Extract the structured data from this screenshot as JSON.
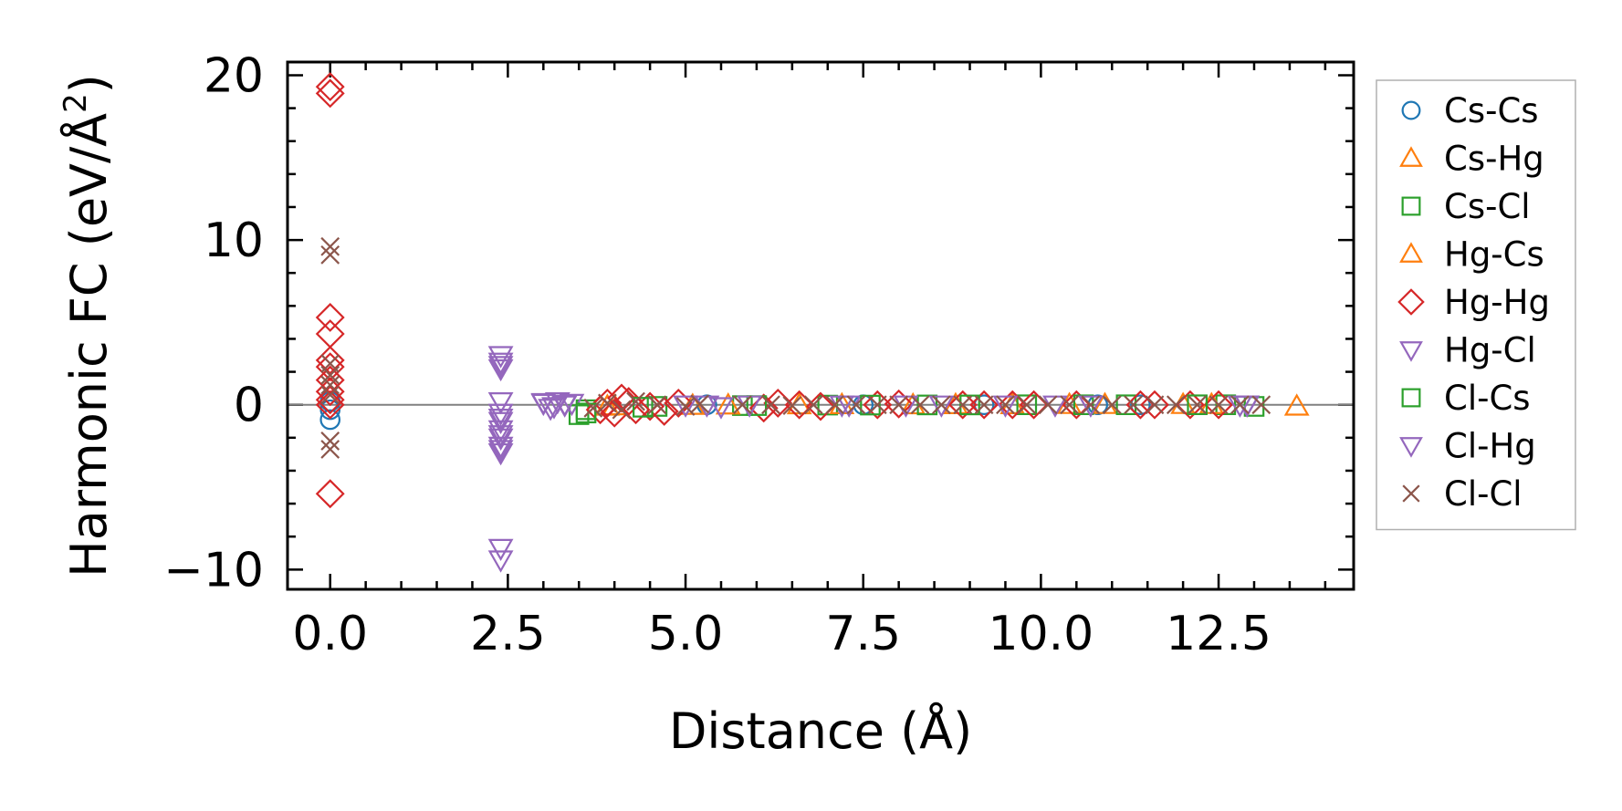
{
  "chart_data": {
    "type": "scatter",
    "xlabel": "Distance (Å)",
    "ylabel": "Harmonic FC (eV/Å²)",
    "ylabel_base": "Harmonic FC (eV/Å",
    "ylabel_sup": "2",
    "ylabel_close": ")",
    "xlim": [
      -0.6,
      14.4
    ],
    "ylim": [
      -11.2,
      20.8
    ],
    "xticks": [
      0.0,
      2.5,
      5.0,
      7.5,
      10.0,
      12.5
    ],
    "xtick_labels": [
      "0.0",
      "2.5",
      "5.0",
      "7.5",
      "10.0",
      "12.5"
    ],
    "yticks": [
      -10,
      0,
      10,
      20
    ],
    "ytick_labels": [
      "−10",
      "0",
      "10",
      "20"
    ],
    "grid": false,
    "zero_line": true,
    "legend_position": "outside-right",
    "series": [
      {
        "name": "Cs-Cs",
        "marker": "circle",
        "color": "#1f77b4",
        "points": [
          [
            0,
            -0.9
          ],
          [
            0,
            -0.3
          ],
          [
            0,
            0.2
          ],
          [
            5.3,
            0
          ],
          [
            7.5,
            0
          ],
          [
            9.2,
            0
          ],
          [
            10.8,
            0
          ],
          [
            11.4,
            0
          ]
        ]
      },
      {
        "name": "Cs-Hg",
        "marker": "triangle-up",
        "color": "#ff7f0e",
        "points": [
          [
            3.9,
            -0.1
          ],
          [
            5.1,
            -0.05
          ],
          [
            6.6,
            -0.02
          ],
          [
            8.2,
            -0.02
          ],
          [
            9.6,
            -0.01
          ],
          [
            10.9,
            0
          ],
          [
            12.0,
            0
          ],
          [
            13.6,
            -0.1
          ]
        ]
      },
      {
        "name": "Cs-Cl",
        "marker": "square",
        "color": "#2ca02c",
        "points": [
          [
            3.5,
            -0.6
          ],
          [
            3.6,
            -0.3
          ],
          [
            4.6,
            -0.1
          ],
          [
            5.8,
            -0.05
          ],
          [
            7.0,
            -0.02
          ],
          [
            8.4,
            -0.01
          ],
          [
            9.8,
            0
          ],
          [
            11.2,
            0
          ],
          [
            12.6,
            0
          ],
          [
            13.0,
            -0.1
          ]
        ]
      },
      {
        "name": "Hg-Cs",
        "marker": "triangle-up",
        "color": "#ff7f0e",
        "points": [
          [
            4.0,
            -0.08
          ],
          [
            5.6,
            -0.03
          ],
          [
            7.2,
            -0.01
          ],
          [
            8.8,
            -0.01
          ],
          [
            10.4,
            0
          ],
          [
            12.4,
            0
          ]
        ]
      },
      {
        "name": "Hg-Hg",
        "marker": "diamond",
        "color": "#d62728",
        "points": [
          [
            0,
            19.3
          ],
          [
            0,
            18.9
          ],
          [
            0,
            5.3
          ],
          [
            0,
            4.3
          ],
          [
            0,
            2.7
          ],
          [
            0,
            2.3
          ],
          [
            0,
            1.5
          ],
          [
            0,
            0.8
          ],
          [
            0,
            0.3
          ],
          [
            0,
            0
          ],
          [
            0,
            -5.4
          ],
          [
            3.8,
            -0.3
          ],
          [
            3.9,
            0.1
          ],
          [
            4.0,
            -0.5
          ],
          [
            4.1,
            0.4
          ],
          [
            4.2,
            0.2
          ],
          [
            4.3,
            -0.3
          ],
          [
            4.5,
            -0.1
          ],
          [
            4.7,
            -0.4
          ],
          [
            4.9,
            0.1
          ],
          [
            6.1,
            -0.2
          ],
          [
            6.3,
            0.1
          ],
          [
            6.6,
            0
          ],
          [
            6.9,
            -0.1
          ],
          [
            7.7,
            0
          ],
          [
            8.0,
            0.05
          ],
          [
            8.9,
            0
          ],
          [
            9.2,
            0
          ],
          [
            9.6,
            0
          ],
          [
            9.9,
            0
          ],
          [
            10.5,
            0
          ],
          [
            11.4,
            0
          ],
          [
            11.6,
            0
          ],
          [
            12.1,
            0
          ],
          [
            12.5,
            0
          ]
        ]
      },
      {
        "name": "Hg-Cl",
        "marker": "triangle-down",
        "color": "#9467bd",
        "points": [
          [
            2.4,
            3.0
          ],
          [
            2.4,
            2.6
          ],
          [
            2.4,
            2.2
          ],
          [
            2.4,
            0.2
          ],
          [
            2.4,
            -0.5
          ],
          [
            2.4,
            -1.0
          ],
          [
            2.4,
            -1.5
          ],
          [
            2.4,
            -2.0
          ],
          [
            2.4,
            -2.5
          ],
          [
            2.4,
            -2.9
          ],
          [
            2.4,
            -8.7
          ],
          [
            2.4,
            -9.4
          ],
          [
            3.0,
            0.1
          ],
          [
            3.1,
            -0.2
          ],
          [
            3.2,
            0.2
          ],
          [
            3.3,
            0
          ],
          [
            3.4,
            0.1
          ],
          [
            5.3,
            0
          ],
          [
            5.5,
            -0.1
          ],
          [
            7.3,
            0
          ],
          [
            8.6,
            0
          ],
          [
            10.2,
            0
          ],
          [
            12.8,
            0
          ],
          [
            12.9,
            0
          ]
        ]
      },
      {
        "name": "Cl-Cs",
        "marker": "square",
        "color": "#2ca02c",
        "points": [
          [
            3.6,
            -0.5
          ],
          [
            4.4,
            -0.15
          ],
          [
            6.0,
            -0.05
          ],
          [
            7.6,
            -0.02
          ],
          [
            9.0,
            -0.01
          ],
          [
            10.6,
            0
          ],
          [
            12.2,
            0
          ]
        ]
      },
      {
        "name": "Cl-Hg",
        "marker": "triangle-down",
        "color": "#9467bd",
        "points": [
          [
            2.4,
            2.4
          ],
          [
            2.4,
            -0.8
          ],
          [
            2.4,
            -1.8
          ],
          [
            2.4,
            -2.7
          ],
          [
            3.0,
            0.15
          ],
          [
            3.15,
            -0.1
          ],
          [
            3.3,
            0.05
          ],
          [
            5.0,
            0
          ],
          [
            5.9,
            0
          ],
          [
            7.2,
            0
          ],
          [
            8.1,
            0
          ],
          [
            9.5,
            0
          ],
          [
            10.7,
            0
          ],
          [
            12.9,
            0
          ]
        ]
      },
      {
        "name": "Cl-Cl",
        "marker": "x",
        "color": "#8c564b",
        "points": [
          [
            0,
            9.6
          ],
          [
            0,
            9.1
          ],
          [
            0,
            2.5
          ],
          [
            0,
            1.8
          ],
          [
            0,
            1.2
          ],
          [
            0,
            0.6
          ],
          [
            0,
            -2.2
          ],
          [
            0,
            -2.7
          ],
          [
            3.7,
            -0.2
          ],
          [
            3.9,
            0.1
          ],
          [
            4.1,
            -0.3
          ],
          [
            4.3,
            0.2
          ],
          [
            4.6,
            0
          ],
          [
            5.0,
            -0.1
          ],
          [
            5.2,
            0.05
          ],
          [
            5.8,
            0
          ],
          [
            6.2,
            0
          ],
          [
            6.5,
            -0.05
          ],
          [
            6.8,
            0
          ],
          [
            7.1,
            0
          ],
          [
            7.4,
            0
          ],
          [
            7.7,
            0
          ],
          [
            8.0,
            0
          ],
          [
            8.3,
            0
          ],
          [
            8.6,
            0
          ],
          [
            8.9,
            0
          ],
          [
            9.2,
            0
          ],
          [
            9.5,
            0
          ],
          [
            9.8,
            0
          ],
          [
            10.1,
            0
          ],
          [
            10.4,
            0
          ],
          [
            10.7,
            0
          ],
          [
            11.0,
            0
          ],
          [
            11.3,
            0
          ],
          [
            11.6,
            0
          ],
          [
            11.9,
            0
          ],
          [
            12.2,
            0
          ],
          [
            12.5,
            0
          ],
          [
            12.8,
            0
          ],
          [
            13.1,
            0
          ]
        ]
      }
    ]
  }
}
